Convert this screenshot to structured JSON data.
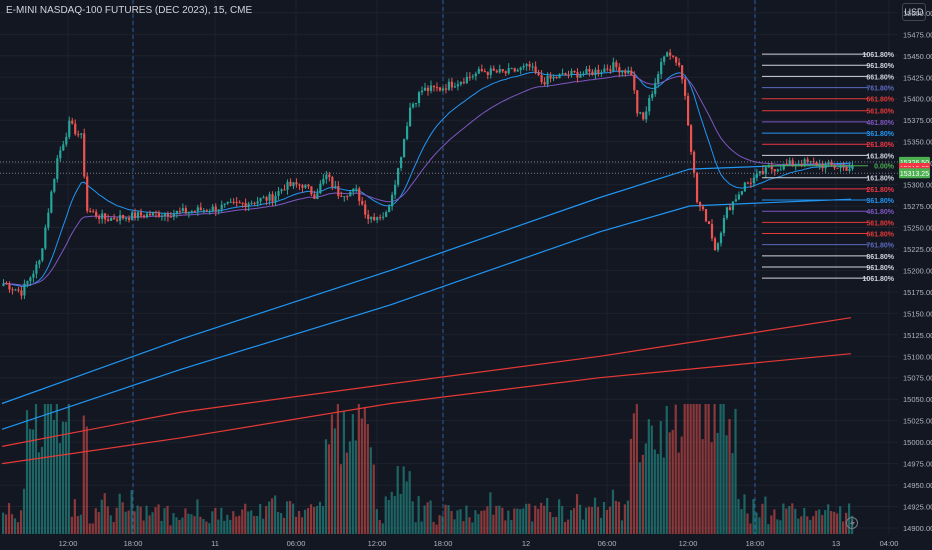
{
  "header": {
    "symbol_title": "E-MINI NASDAQ-100 FUTURES (DEC 2023), 15, CME"
  },
  "currency_button": {
    "label": "USD"
  },
  "colors": {
    "bg": "#131722",
    "grid": "#1e222d",
    "up": "#26a69a",
    "down": "#ef5350",
    "ma_blue": "#2196f3",
    "ma_purple": "#7e57c2",
    "ma_red": "#e53935",
    "text": "#b2b5be",
    "session_line": "#2a5d9f",
    "price_tag_green": "#4caf50",
    "price_tag_red": "#f23645"
  },
  "chart_data": {
    "type": "candlestick",
    "y_axis": {
      "ticks": [
        15500,
        15475,
        15450,
        15425,
        15400,
        15375,
        15350,
        15325,
        15300,
        15275,
        15250,
        15225,
        15200,
        15175,
        15150,
        15125,
        15100,
        15075,
        15050,
        15025,
        15000,
        14975,
        14950,
        14925,
        14900
      ],
      "min": 14893,
      "max": 15515
    },
    "x_axis": {
      "ticks": [
        "12:00",
        "18:00",
        "11",
        "06:00",
        "12:00",
        "18:00",
        "12",
        "06:00",
        "12:00",
        "18:00",
        "13",
        "04:00"
      ]
    },
    "price_path": [
      [
        0,
        15185
      ],
      [
        6,
        15175
      ],
      [
        12,
        15210
      ],
      [
        18,
        15330
      ],
      [
        22,
        15370
      ],
      [
        26,
        15355
      ],
      [
        28,
        15270
      ],
      [
        34,
        15260
      ],
      [
        48,
        15265
      ],
      [
        60,
        15268
      ],
      [
        70,
        15272
      ],
      [
        80,
        15278
      ],
      [
        90,
        15285
      ],
      [
        94,
        15298
      ],
      [
        100,
        15300
      ],
      [
        104,
        15288
      ],
      [
        108,
        15310
      ],
      [
        112,
        15290
      ],
      [
        118,
        15292
      ],
      [
        122,
        15262
      ],
      [
        128,
        15265
      ],
      [
        132,
        15318
      ],
      [
        136,
        15390
      ],
      [
        140,
        15410
      ],
      [
        146,
        15412
      ],
      [
        152,
        15420
      ],
      [
        160,
        15432
      ],
      [
        168,
        15430
      ],
      [
        176,
        15437
      ],
      [
        180,
        15420
      ],
      [
        188,
        15428
      ],
      [
        196,
        15430
      ],
      [
        204,
        15438
      ],
      [
        210,
        15430
      ],
      [
        212,
        15385
      ],
      [
        214,
        15375
      ],
      [
        218,
        15420
      ],
      [
        222,
        15458
      ],
      [
        226,
        15440
      ],
      [
        228,
        15405
      ],
      [
        232,
        15280
      ],
      [
        236,
        15255
      ],
      [
        238,
        15225
      ],
      [
        242,
        15270
      ],
      [
        248,
        15300
      ],
      [
        256,
        15318
      ],
      [
        266,
        15326
      ],
      [
        276,
        15322
      ],
      [
        284,
        15319
      ]
    ],
    "moving_averages": [
      {
        "color": "ma_blue",
        "points": [
          [
            0,
            15045
          ],
          [
            60,
            15120
          ],
          [
            130,
            15200
          ],
          [
            200,
            15285
          ],
          [
            230,
            15318
          ],
          [
            284,
            15325
          ]
        ]
      },
      {
        "color": "ma_blue",
        "points": [
          [
            0,
            15015
          ],
          [
            60,
            15085
          ],
          [
            130,
            15160
          ],
          [
            200,
            15245
          ],
          [
            230,
            15275
          ],
          [
            284,
            15283
          ]
        ]
      },
      {
        "color": "ma_red",
        "points": [
          [
            0,
            14995
          ],
          [
            60,
            15035
          ],
          [
            130,
            15068
          ],
          [
            200,
            15100
          ],
          [
            284,
            15145
          ]
        ]
      },
      {
        "color": "ma_red",
        "points": [
          [
            0,
            14975
          ],
          [
            60,
            15005
          ],
          [
            130,
            15045
          ],
          [
            200,
            15075
          ],
          [
            284,
            15103
          ]
        ]
      }
    ],
    "fibonacci_levels": [
      {
        "label": "1061.80%",
        "value": 15452,
        "color": "#d1d4dc"
      },
      {
        "label": "961.80%",
        "value": 15439,
        "color": "#d1d4dc"
      },
      {
        "label": "861.80%",
        "value": 15426,
        "color": "#d1d4dc"
      },
      {
        "label": "761.80%",
        "value": 15413,
        "color": "#5c6bc0"
      },
      {
        "label": "661.80%",
        "value": 15400,
        "color": "#e53935"
      },
      {
        "label": "561.80%",
        "value": 15386,
        "color": "#e53935"
      },
      {
        "label": "461.80%",
        "value": 15373,
        "color": "#7e57c2"
      },
      {
        "label": "361.80%",
        "value": 15360,
        "color": "#2196f3"
      },
      {
        "label": "261.80%",
        "value": 15347,
        "color": "#f23645"
      },
      {
        "label": "161.80%",
        "value": 15334,
        "color": "#d1d4dc"
      },
      {
        "label": "0.00%",
        "value": 15322,
        "color": "#4caf50"
      },
      {
        "label": "161.80%",
        "value": 15308,
        "color": "#d1d4dc"
      },
      {
        "label": "261.80%",
        "value": 15295,
        "color": "#f23645"
      },
      {
        "label": "361.80%",
        "value": 15282,
        "color": "#2196f3"
      },
      {
        "label": "461.80%",
        "value": 15269,
        "color": "#7e57c2"
      },
      {
        "label": "561.80%",
        "value": 15256,
        "color": "#e53935"
      },
      {
        "label": "661.80%",
        "value": 15243,
        "color": "#e53935"
      },
      {
        "label": "761.80%",
        "value": 15230,
        "color": "#5c6bc0"
      },
      {
        "label": "861.80%",
        "value": 15217,
        "color": "#d1d4dc"
      },
      {
        "label": "961.80%",
        "value": 15204,
        "color": "#d1d4dc"
      },
      {
        "label": "1061.80%",
        "value": 15191,
        "color": "#d1d4dc"
      }
    ],
    "price_tags": [
      {
        "label": "15326.50",
        "value": 15326.5,
        "color": "price_tag_green"
      },
      {
        "label": "15319.25",
        "value": 15319.25,
        "color": "price_tag_red"
      },
      {
        "label": "07:59",
        "value": 15315,
        "color": "price_tag_red"
      },
      {
        "label": "15313.25",
        "value": 15313.25,
        "color": "price_tag_green"
      }
    ],
    "volume_axis_note": "volume bars overlay the lower price area"
  }
}
